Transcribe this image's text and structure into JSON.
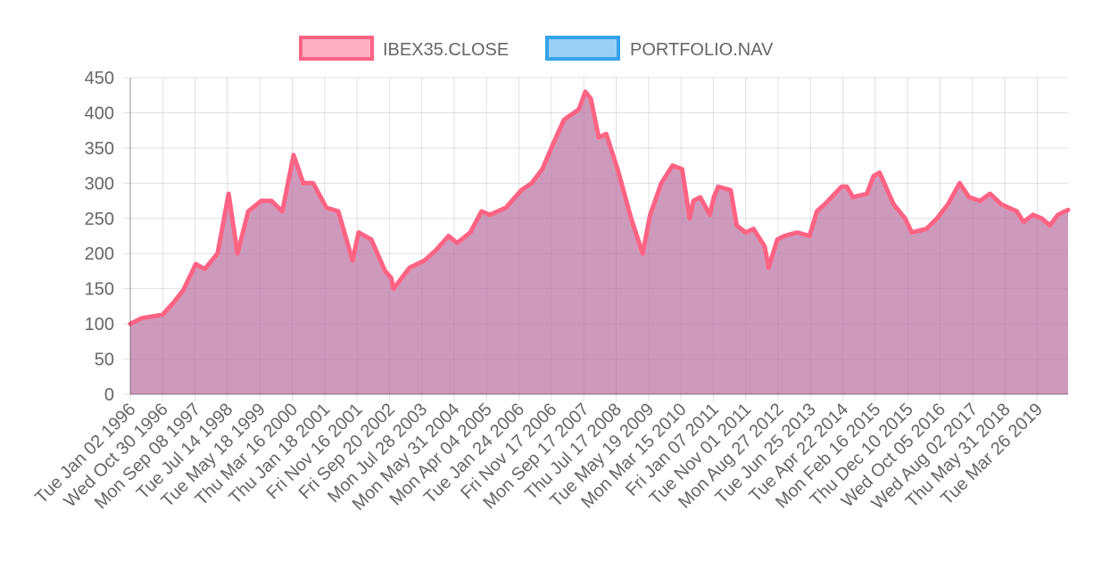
{
  "chart_data": {
    "type": "area",
    "title": "",
    "xlabel": "",
    "ylabel": "",
    "ylim": [
      0,
      450
    ],
    "yticks": [
      0,
      50,
      100,
      150,
      200,
      250,
      300,
      350,
      400,
      450
    ],
    "grid": true,
    "legend_position": "top-center",
    "x_tick_labels": [
      "Tue Jan 02 1996",
      "Wed Oct 30 1996",
      "Mon Sep 08 1997",
      "Tue Jul 14 1998",
      "Tue May 18 1999",
      "Thu Mar 16 2000",
      "Thu Jan 18 2001",
      "Fri Nov 16 2001",
      "Fri Sep 20 2002",
      "Mon Jul 28 2003",
      "Mon May 31 2004",
      "Mon Apr 04 2005",
      "Tue Jan 24 2006",
      "Fri Nov 17 2006",
      "Mon Sep 17 2007",
      "Thu Jul 17 2008",
      "Tue May 19 2009",
      "Mon Mar 15 2010",
      "Fri Jan 07 2011",
      "Tue Nov 01 2011",
      "Mon Aug 27 2012",
      "Tue Jun 25 2013",
      "Tue Apr 22 2014",
      "Mon Feb 16 2015",
      "Thu Dec 10 2015",
      "Wed Oct 05 2016",
      "Wed Aug 02 2017",
      "Thu May 31 2018",
      "Tue Mar 26 2019"
    ],
    "x": [
      "1996-01-02",
      "1996-04-15",
      "1996-10-30",
      "1997-02-10",
      "1997-05-15",
      "1997-09-08",
      "1997-12-01",
      "1998-04-01",
      "1998-07-14",
      "1998-10-05",
      "1999-01-15",
      "1999-05-18",
      "1999-08-20",
      "1999-12-01",
      "2000-03-16",
      "2000-06-15",
      "2000-09-15",
      "2001-01-18",
      "2001-05-10",
      "2001-09-21",
      "2001-11-16",
      "2002-03-15",
      "2002-07-24",
      "2002-09-20",
      "2002-10-10",
      "2003-03-12",
      "2003-07-28",
      "2003-11-15",
      "2004-03-11",
      "2004-05-31",
      "2004-10-01",
      "2005-01-15",
      "2005-04-04",
      "2005-09-01",
      "2006-01-24",
      "2006-05-01",
      "2006-08-10",
      "2006-11-17",
      "2007-03-01",
      "2007-07-19",
      "2007-09-17",
      "2007-11-08",
      "2008-01-22",
      "2008-04-01",
      "2008-07-17",
      "2008-11-21",
      "2009-03-09",
      "2009-05-19",
      "2009-09-01",
      "2009-12-15",
      "2010-03-15",
      "2010-05-25",
      "2010-06-30",
      "2010-09-01",
      "2010-11-30",
      "2011-01-07",
      "2011-02-18",
      "2011-06-15",
      "2011-08-10",
      "2011-11-01",
      "2012-01-15",
      "2012-04-30",
      "2012-06-05",
      "2012-08-27",
      "2012-11-01",
      "2013-03-01",
      "2013-06-25",
      "2013-09-01",
      "2013-11-15",
      "2014-04-22",
      "2014-06-10",
      "2014-08-07",
      "2014-12-16",
      "2015-02-16",
      "2015-04-14",
      "2015-08-24",
      "2015-12-10",
      "2016-02-11",
      "2016-06-27",
      "2016-10-05",
      "2017-01-15",
      "2017-05-05",
      "2017-08-02",
      "2017-11-15",
      "2018-02-15",
      "2018-05-31",
      "2018-10-25",
      "2018-12-27",
      "2019-03-26",
      "2019-06-15",
      "2019-09-01",
      "2019-11-15",
      "2020-01-20",
      "2020-02-19"
    ],
    "series": [
      {
        "name": "IBEX35.CLOSE",
        "color": "#ff6384",
        "fill": "rgba(255,99,132,0.5)",
        "values": [
          100,
          108,
          113,
          130,
          148,
          185,
          178,
          200,
          285,
          200,
          260,
          275,
          275,
          260,
          340,
          300,
          300,
          265,
          260,
          190,
          230,
          220,
          175,
          165,
          150,
          180,
          190,
          205,
          225,
          215,
          230,
          260,
          255,
          265,
          290,
          300,
          320,
          355,
          390,
          405,
          430,
          420,
          365,
          370,
          320,
          250,
          200,
          255,
          300,
          325,
          320,
          250,
          275,
          280,
          255,
          280,
          295,
          290,
          240,
          230,
          235,
          210,
          180,
          220,
          225,
          230,
          225,
          260,
          270,
          295,
          295,
          280,
          285,
          310,
          315,
          270,
          250,
          230,
          235,
          250,
          270,
          300,
          280,
          275,
          285,
          270,
          260,
          245,
          255,
          250,
          240,
          255,
          260,
          262
        ]
      },
      {
        "name": "PORTFOLIO.NAV",
        "color": "#36a2eb",
        "fill": "rgba(54,162,235,0.5)",
        "values": [
          100,
          108,
          113,
          130,
          148,
          185,
          178,
          200,
          285,
          200,
          260,
          275,
          275,
          260,
          340,
          300,
          300,
          265,
          260,
          190,
          230,
          220,
          175,
          165,
          150,
          180,
          190,
          205,
          225,
          215,
          230,
          260,
          255,
          265,
          290,
          300,
          320,
          355,
          390,
          405,
          430,
          420,
          365,
          370,
          320,
          250,
          200,
          255,
          300,
          325,
          320,
          250,
          275,
          280,
          255,
          280,
          295,
          290,
          240,
          230,
          235,
          210,
          180,
          220,
          225,
          230,
          225,
          260,
          270,
          295,
          295,
          280,
          285,
          310,
          315,
          270,
          250,
          230,
          235,
          250,
          270,
          300,
          280,
          275,
          285,
          270,
          260,
          245,
          255,
          250,
          240,
          255,
          260,
          262
        ]
      }
    ]
  }
}
